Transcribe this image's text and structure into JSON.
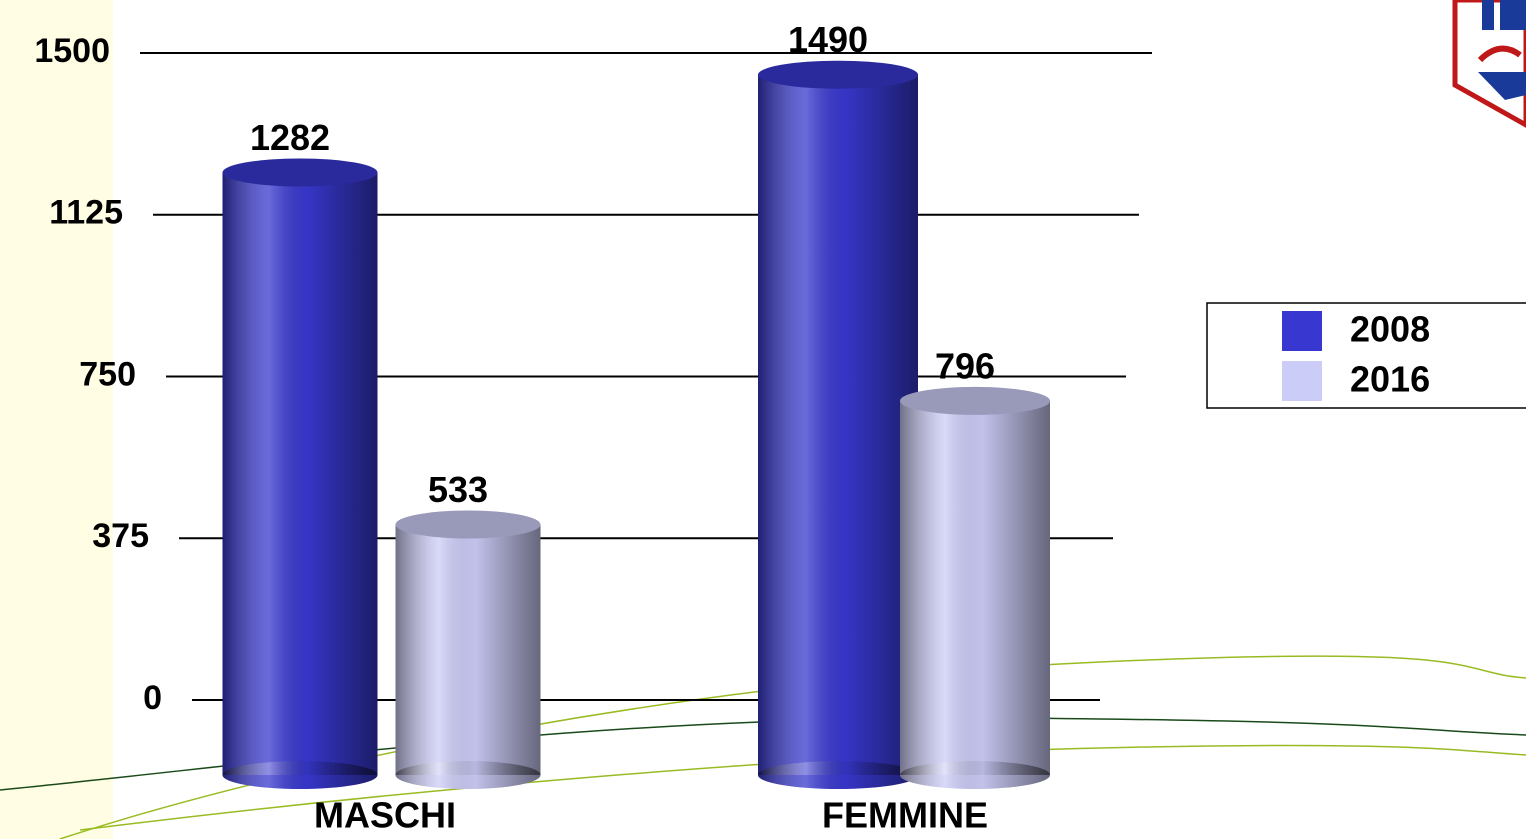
{
  "chart_data": {
    "type": "bar",
    "categories": [
      "MASCHI",
      "FEMMINE"
    ],
    "series": [
      {
        "name": "2008",
        "color": "#3838d0",
        "values": [
          1282,
          1490
        ]
      },
      {
        "name": "2016",
        "color": "#ccccf8",
        "values": [
          533,
          796
        ]
      }
    ],
    "ylim": [
      0,
      1500
    ],
    "yticks": [
      0,
      375,
      750,
      1125,
      1500
    ],
    "grid": true,
    "legend": "right"
  }
}
